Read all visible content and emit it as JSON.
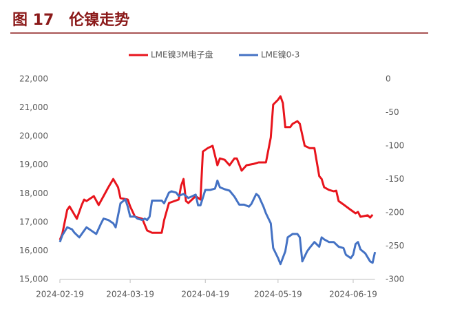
{
  "chart_data": {
    "type": "line",
    "title": "图 17　伦镍走势",
    "xticks": [
      "2024-02-19",
      "2024-03-19",
      "2024-04-19",
      "2024-05-19",
      "2024-06-19"
    ],
    "xlim": [
      "2024-02-19",
      "2024-06-28"
    ],
    "ylim": [
      15000,
      22000
    ],
    "yticks": [
      {
        "value": 15000,
        "label": "15,000"
      },
      {
        "value": 16000,
        "label": "16,000"
      },
      {
        "value": 17000,
        "label": "17,000"
      },
      {
        "value": 18000,
        "label": "18,000"
      },
      {
        "value": 19000,
        "label": "19,000"
      },
      {
        "value": 20000,
        "label": "20,000"
      },
      {
        "value": 21000,
        "label": "21,000"
      },
      {
        "value": 22000,
        "label": "22,000"
      }
    ],
    "y2lim": [
      -300,
      0
    ],
    "y2ticks": [
      0,
      -50,
      -100,
      -150,
      -200,
      -250,
      -300
    ],
    "legend": "top",
    "series": [
      {
        "name": "LME镍3M电子盘",
        "color": "#e8141c",
        "axis": "y",
        "x": [
          "2024-02-19",
          "2024-02-20",
          "2024-02-22",
          "2024-02-23",
          "2024-02-26",
          "2024-02-28",
          "2024-02-29",
          "2024-03-01",
          "2024-03-04",
          "2024-03-06",
          "2024-03-08",
          "2024-03-10",
          "2024-03-12",
          "2024-03-14",
          "2024-03-15",
          "2024-03-18",
          "2024-03-19",
          "2024-03-21",
          "2024-03-24",
          "2024-03-26",
          "2024-03-28",
          "2024-04-01",
          "2024-04-02",
          "2024-04-04",
          "2024-04-08",
          "2024-04-09",
          "2024-04-10",
          "2024-04-11",
          "2024-04-12",
          "2024-04-15",
          "2024-04-17",
          "2024-04-18",
          "2024-04-20",
          "2024-04-22",
          "2024-04-24",
          "2024-04-25",
          "2024-04-27",
          "2024-04-29",
          "2024-05-01",
          "2024-05-02",
          "2024-05-04",
          "2024-05-06",
          "2024-05-09",
          "2024-05-11",
          "2024-05-14",
          "2024-05-16",
          "2024-05-17",
          "2024-05-19",
          "2024-05-20",
          "2024-05-21",
          "2024-05-22",
          "2024-05-24",
          "2024-05-25",
          "2024-05-27",
          "2024-05-28",
          "2024-05-30",
          "2024-06-01",
          "2024-06-03",
          "2024-06-05",
          "2024-06-06",
          "2024-06-07",
          "2024-06-09",
          "2024-06-11",
          "2024-06-12",
          "2024-06-13",
          "2024-06-15",
          "2024-06-18",
          "2024-06-20",
          "2024-06-21",
          "2024-06-22",
          "2024-06-25",
          "2024-06-26",
          "2024-06-27"
        ],
        "values": [
          16380,
          16590,
          17430,
          17550,
          17120,
          17600,
          17790,
          17740,
          17910,
          17600,
          17910,
          18220,
          18510,
          18220,
          17840,
          17790,
          17550,
          17190,
          17120,
          16710,
          16630,
          16630,
          17070,
          17670,
          17790,
          18270,
          18510,
          17740,
          17670,
          17910,
          17790,
          19470,
          19590,
          19670,
          18990,
          19230,
          19180,
          18990,
          19230,
          19230,
          18800,
          18990,
          19040,
          19090,
          19090,
          19960,
          21110,
          21280,
          21400,
          21160,
          20320,
          20320,
          20440,
          20530,
          20440,
          19670,
          19590,
          19590,
          18610,
          18510,
          18220,
          18130,
          18080,
          18100,
          17740,
          17620,
          17430,
          17310,
          17360,
          17190,
          17240,
          17160,
          17260
        ]
      },
      {
        "name": "LME镍0-3",
        "color": "#4472c4",
        "axis": "y2",
        "x": [
          "2024-02-19",
          "2024-02-20",
          "2024-02-22",
          "2024-02-24",
          "2024-02-25",
          "2024-02-27",
          "2024-02-28",
          "2024-03-01",
          "2024-03-03",
          "2024-03-05",
          "2024-03-07",
          "2024-03-08",
          "2024-03-10",
          "2024-03-12",
          "2024-03-13",
          "2024-03-15",
          "2024-03-17",
          "2024-03-18",
          "2024-03-19",
          "2024-03-21",
          "2024-03-22",
          "2024-03-24",
          "2024-03-25",
          "2024-03-26",
          "2024-03-27",
          "2024-03-28",
          "2024-03-30",
          "2024-04-01",
          "2024-04-02",
          "2024-04-04",
          "2024-04-05",
          "2024-04-07",
          "2024-04-08",
          "2024-04-10",
          "2024-04-11",
          "2024-04-12",
          "2024-04-15",
          "2024-04-16",
          "2024-04-17",
          "2024-04-19",
          "2024-04-21",
          "2024-04-23",
          "2024-04-24",
          "2024-04-25",
          "2024-04-27",
          "2024-04-29",
          "2024-05-01",
          "2024-05-03",
          "2024-05-04",
          "2024-05-05",
          "2024-05-07",
          "2024-05-08",
          "2024-05-10",
          "2024-05-11",
          "2024-05-13",
          "2024-05-14",
          "2024-05-16",
          "2024-05-17",
          "2024-05-19",
          "2024-05-20",
          "2024-05-22",
          "2024-05-23",
          "2024-05-25",
          "2024-05-27",
          "2024-05-28",
          "2024-05-29",
          "2024-05-31",
          "2024-06-01",
          "2024-06-03",
          "2024-06-05",
          "2024-06-06",
          "2024-06-07",
          "2024-06-09",
          "2024-06-11",
          "2024-06-13",
          "2024-06-15",
          "2024-06-16",
          "2024-06-18",
          "2024-06-19",
          "2024-06-20",
          "2024-06-21",
          "2024-06-22",
          "2024-06-24",
          "2024-06-26",
          "2024-06-27",
          "2024-06-28"
        ],
        "values": [
          -244,
          -234,
          -222,
          -225,
          -230,
          -237,
          -232,
          -222,
          -227,
          -232,
          -216,
          -209,
          -211,
          -216,
          -222,
          -186,
          -180,
          -191,
          -206,
          -206,
          -209,
          -211,
          -209,
          -211,
          -206,
          -182,
          -182,
          -182,
          -186,
          -170,
          -168,
          -170,
          -175,
          -172,
          -175,
          -178,
          -173,
          -189,
          -189,
          -166,
          -166,
          -164,
          -152,
          -162,
          -165,
          -167,
          -176,
          -188,
          -188,
          -188,
          -191,
          -187,
          -172,
          -175,
          -191,
          -201,
          -216,
          -253,
          -268,
          -277,
          -258,
          -237,
          -232,
          -232,
          -237,
          -273,
          -258,
          -253,
          -244,
          -251,
          -237,
          -240,
          -244,
          -244,
          -251,
          -253,
          -263,
          -268,
          -263,
          -247,
          -244,
          -255,
          -261,
          -273,
          -275,
          -259
        ]
      }
    ]
  }
}
